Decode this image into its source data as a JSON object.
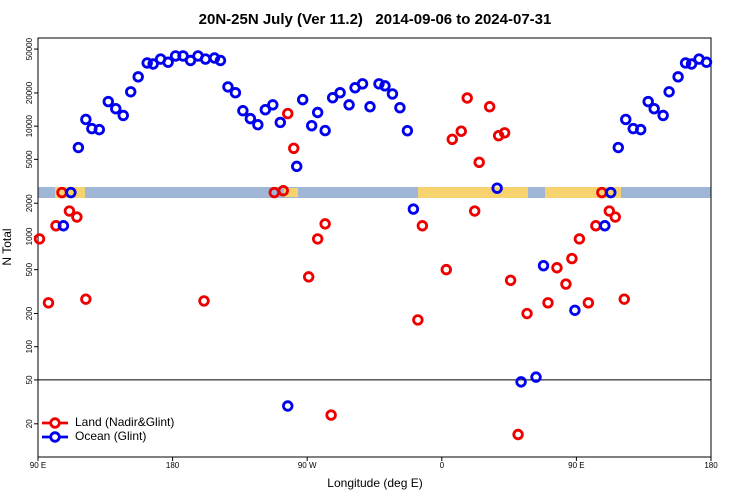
{
  "chart_data": {
    "type": "scatter",
    "title": "20N-25N July (Ver 11.2)   2014-09-06 to 2024-07-31",
    "x_label": "Longitude (deg E)",
    "y_label": "N Total",
    "xlim": [
      90,
      540
    ],
    "xticks": [
      {
        "value": 90,
        "label": "90 E"
      },
      180,
      {
        "value": 270,
        "label": "90 W"
      },
      {
        "value": 360,
        "label": "0"
      },
      {
        "value": 450,
        "label": "90 E"
      },
      {
        "value": 540,
        "label": "180"
      }
    ],
    "ylim": [
      10,
      63000
    ],
    "ylog": true,
    "yticks": [
      20,
      50,
      100,
      200,
      500,
      1000,
      2000,
      5000,
      10000,
      20000,
      50000
    ],
    "reference_line": 50,
    "grid": false,
    "legend": "lower left",
    "series": [
      {
        "name": "Land (Nadir&Glint)",
        "color": "#ee0000",
        "x": [
          91,
          97,
          102,
          106,
          111,
          116,
          122,
          201,
          248,
          254,
          257,
          261,
          271,
          277,
          282,
          286,
          344,
          347,
          363,
          367,
          373,
          377,
          382,
          385,
          392,
          398,
          402,
          406,
          411,
          417,
          431,
          437,
          443,
          447,
          452,
          458,
          463,
          467,
          472,
          476,
          482
        ],
        "values": [
          950,
          250,
          1250,
          2500,
          1700,
          1500,
          270,
          260,
          2500,
          2600,
          13000,
          6300,
          430,
          950,
          1300,
          24,
          175,
          1250,
          500,
          7600,
          9000,
          18000,
          1700,
          4700,
          15000,
          8200,
          8700,
          400,
          16,
          200,
          250,
          520,
          370,
          630,
          950,
          250,
          1250,
          2500,
          1700,
          1500,
          270
        ]
      },
      {
        "name": "Ocean (Glint)",
        "color": "#0000ee",
        "x": [
          107,
          112,
          117,
          122,
          126,
          131,
          137,
          142,
          147,
          152,
          157,
          163,
          167,
          172,
          177,
          182,
          187,
          192,
          197,
          202,
          208,
          212,
          217,
          222,
          227,
          232,
          237,
          242,
          247,
          252,
          257,
          263,
          267,
          273,
          277,
          282,
          287,
          292,
          298,
          302,
          307,
          312,
          318,
          322,
          327,
          332,
          337,
          341,
          397,
          413,
          423,
          428,
          449,
          469,
          473,
          478,
          483,
          488,
          493,
          498,
          502,
          508,
          512,
          518,
          523,
          527,
          532,
          537
        ],
        "values": [
          1250,
          2500,
          6400,
          11500,
          9500,
          9300,
          16700,
          14400,
          12500,
          20500,
          28000,
          37400,
          36600,
          40600,
          38000,
          43300,
          43300,
          39400,
          43300,
          40600,
          41500,
          39400,
          22700,
          20100,
          13800,
          11700,
          10300,
          14100,
          15600,
          10800,
          29,
          4320,
          17400,
          10100,
          13300,
          9120,
          18100,
          20100,
          15600,
          22300,
          24200,
          15000,
          24200,
          23200,
          19600,
          14700,
          9100,
          1770,
          2740,
          48,
          53,
          543,
          214,
          1250,
          2500,
          6400,
          11500,
          9500,
          9300,
          16700,
          14400,
          12500,
          20500,
          28000,
          37400,
          36600,
          40600,
          38000
        ]
      }
    ]
  }
}
